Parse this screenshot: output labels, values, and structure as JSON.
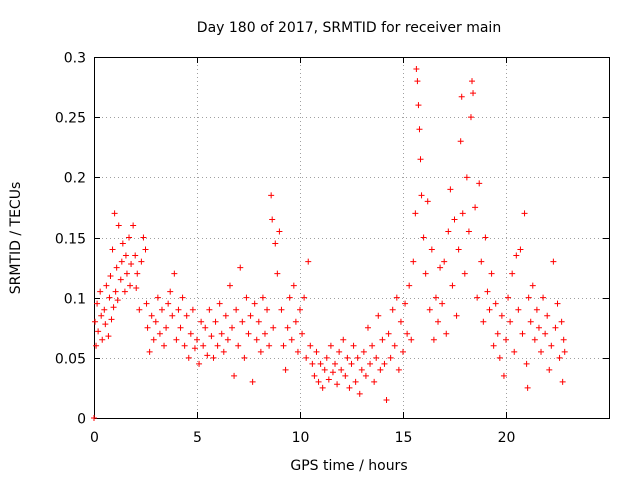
{
  "chart_data": {
    "type": "scatter",
    "title": "Day 180 of 2017, SRMTID for receiver main",
    "xlabel": "GPS time / hours",
    "ylabel": "SRMTID / TECUs",
    "xlim": [
      0,
      25
    ],
    "ylim": [
      0,
      0.3
    ],
    "grid": true,
    "marker": "+",
    "color": "#ff0000",
    "xticks": [
      {
        "value": 0,
        "label": "0"
      },
      {
        "value": 5,
        "label": "5"
      },
      {
        "value": 10,
        "label": "10"
      },
      {
        "value": 15,
        "label": "15"
      },
      {
        "value": 20,
        "label": "20"
      }
    ],
    "yticks": [
      {
        "value": 0,
        "label": "0"
      },
      {
        "value": 0.05,
        "label": "0.05"
      },
      {
        "value": 0.1,
        "label": "0.1"
      },
      {
        "value": 0.15,
        "label": "0.15"
      },
      {
        "value": 0.2,
        "label": "0.2"
      },
      {
        "value": 0.25,
        "label": "0.25"
      },
      {
        "value": 0.3,
        "label": "0.3"
      }
    ],
    "series": [
      {
        "name": "SRMTID",
        "points": [
          [
            0.0,
            0.0
          ],
          [
            0.05,
            0.08
          ],
          [
            0.1,
            0.06
          ],
          [
            0.15,
            0.095
          ],
          [
            0.2,
            0.072
          ],
          [
            0.3,
            0.105
          ],
          [
            0.35,
            0.085
          ],
          [
            0.4,
            0.065
          ],
          [
            0.5,
            0.09
          ],
          [
            0.55,
            0.078
          ],
          [
            0.6,
            0.11
          ],
          [
            0.7,
            0.068
          ],
          [
            0.75,
            0.1
          ],
          [
            0.8,
            0.118
          ],
          [
            0.85,
            0.082
          ],
          [
            0.9,
            0.14
          ],
          [
            0.95,
            0.092
          ],
          [
            1.0,
            0.17
          ],
          [
            1.05,
            0.105
          ],
          [
            1.1,
            0.125
          ],
          [
            1.15,
            0.098
          ],
          [
            1.2,
            0.16
          ],
          [
            1.3,
            0.115
          ],
          [
            1.35,
            0.13
          ],
          [
            1.4,
            0.145
          ],
          [
            1.5,
            0.105
          ],
          [
            1.55,
            0.135
          ],
          [
            1.6,
            0.12
          ],
          [
            1.7,
            0.15
          ],
          [
            1.75,
            0.11
          ],
          [
            1.8,
            0.128
          ],
          [
            1.9,
            0.16
          ],
          [
            2.0,
            0.135
          ],
          [
            2.05,
            0.108
          ],
          [
            2.1,
            0.12
          ],
          [
            2.2,
            0.09
          ],
          [
            2.3,
            0.13
          ],
          [
            2.4,
            0.15
          ],
          [
            2.5,
            0.14
          ],
          [
            2.55,
            0.095
          ],
          [
            2.6,
            0.075
          ],
          [
            2.7,
            0.055
          ],
          [
            2.8,
            0.085
          ],
          [
            2.9,
            0.065
          ],
          [
            3.0,
            0.08
          ],
          [
            3.1,
            0.1
          ],
          [
            3.2,
            0.07
          ],
          [
            3.3,
            0.09
          ],
          [
            3.4,
            0.06
          ],
          [
            3.5,
            0.075
          ],
          [
            3.6,
            0.095
          ],
          [
            3.7,
            0.105
          ],
          [
            3.8,
            0.085
          ],
          [
            3.9,
            0.12
          ],
          [
            4.0,
            0.065
          ],
          [
            4.1,
            0.09
          ],
          [
            4.2,
            0.075
          ],
          [
            4.3,
            0.1
          ],
          [
            4.4,
            0.06
          ],
          [
            4.5,
            0.085
          ],
          [
            4.6,
            0.05
          ],
          [
            4.7,
            0.07
          ],
          [
            4.8,
            0.09
          ],
          [
            4.9,
            0.058
          ],
          [
            5.0,
            0.065
          ],
          [
            5.1,
            0.045
          ],
          [
            5.2,
            0.08
          ],
          [
            5.3,
            0.06
          ],
          [
            5.4,
            0.075
          ],
          [
            5.5,
            0.052
          ],
          [
            5.6,
            0.09
          ],
          [
            5.7,
            0.068
          ],
          [
            5.8,
            0.05
          ],
          [
            5.9,
            0.08
          ],
          [
            6.0,
            0.06
          ],
          [
            6.1,
            0.095
          ],
          [
            6.2,
            0.07
          ],
          [
            6.3,
            0.055
          ],
          [
            6.4,
            0.085
          ],
          [
            6.5,
            0.065
          ],
          [
            6.6,
            0.11
          ],
          [
            6.7,
            0.075
          ],
          [
            6.8,
            0.035
          ],
          [
            6.9,
            0.09
          ],
          [
            7.0,
            0.06
          ],
          [
            7.1,
            0.125
          ],
          [
            7.2,
            0.08
          ],
          [
            7.3,
            0.05
          ],
          [
            7.4,
            0.1
          ],
          [
            7.5,
            0.07
          ],
          [
            7.6,
            0.085
          ],
          [
            7.7,
            0.03
          ],
          [
            7.8,
            0.095
          ],
          [
            7.9,
            0.065
          ],
          [
            8.0,
            0.08
          ],
          [
            8.1,
            0.055
          ],
          [
            8.2,
            0.1
          ],
          [
            8.3,
            0.07
          ],
          [
            8.4,
            0.09
          ],
          [
            8.5,
            0.06
          ],
          [
            8.6,
            0.185
          ],
          [
            8.65,
            0.165
          ],
          [
            8.7,
            0.075
          ],
          [
            8.8,
            0.145
          ],
          [
            8.9,
            0.12
          ],
          [
            9.0,
            0.155
          ],
          [
            9.1,
            0.09
          ],
          [
            9.2,
            0.06
          ],
          [
            9.3,
            0.04
          ],
          [
            9.4,
            0.075
          ],
          [
            9.5,
            0.1
          ],
          [
            9.6,
            0.065
          ],
          [
            9.7,
            0.11
          ],
          [
            9.8,
            0.08
          ],
          [
            9.9,
            0.055
          ],
          [
            10.0,
            0.09
          ],
          [
            10.1,
            0.07
          ],
          [
            10.2,
            0.1
          ],
          [
            10.3,
            0.05
          ],
          [
            10.4,
            0.13
          ],
          [
            10.5,
            0.06
          ],
          [
            10.6,
            0.045
          ],
          [
            10.7,
            0.035
          ],
          [
            10.8,
            0.055
          ],
          [
            10.9,
            0.03
          ],
          [
            11.0,
            0.045
          ],
          [
            11.1,
            0.025
          ],
          [
            11.2,
            0.04
          ],
          [
            11.3,
            0.05
          ],
          [
            11.4,
            0.032
          ],
          [
            11.5,
            0.06
          ],
          [
            11.6,
            0.038
          ],
          [
            11.7,
            0.045
          ],
          [
            11.8,
            0.028
          ],
          [
            11.9,
            0.055
          ],
          [
            12.0,
            0.04
          ],
          [
            12.1,
            0.065
          ],
          [
            12.2,
            0.035
          ],
          [
            12.3,
            0.05
          ],
          [
            12.4,
            0.025
          ],
          [
            12.5,
            0.045
          ],
          [
            12.6,
            0.06
          ],
          [
            12.7,
            0.03
          ],
          [
            12.8,
            0.05
          ],
          [
            12.9,
            0.02
          ],
          [
            13.0,
            0.04
          ],
          [
            13.1,
            0.055
          ],
          [
            13.2,
            0.035
          ],
          [
            13.3,
            0.075
          ],
          [
            13.4,
            0.045
          ],
          [
            13.5,
            0.06
          ],
          [
            13.6,
            0.03
          ],
          [
            13.7,
            0.05
          ],
          [
            13.8,
            0.085
          ],
          [
            13.9,
            0.04
          ],
          [
            14.0,
            0.065
          ],
          [
            14.1,
            0.045
          ],
          [
            14.2,
            0.015
          ],
          [
            14.3,
            0.07
          ],
          [
            14.4,
            0.05
          ],
          [
            14.5,
            0.09
          ],
          [
            14.6,
            0.06
          ],
          [
            14.7,
            0.1
          ],
          [
            14.8,
            0.04
          ],
          [
            14.9,
            0.08
          ],
          [
            15.0,
            0.055
          ],
          [
            15.1,
            0.095
          ],
          [
            15.2,
            0.07
          ],
          [
            15.3,
            0.11
          ],
          [
            15.4,
            0.065
          ],
          [
            15.5,
            0.13
          ],
          [
            15.6,
            0.17
          ],
          [
            15.65,
            0.29
          ],
          [
            15.7,
            0.28
          ],
          [
            15.75,
            0.26
          ],
          [
            15.8,
            0.24
          ],
          [
            15.85,
            0.215
          ],
          [
            15.9,
            0.185
          ],
          [
            16.0,
            0.15
          ],
          [
            16.1,
            0.12
          ],
          [
            16.2,
            0.18
          ],
          [
            16.3,
            0.09
          ],
          [
            16.4,
            0.14
          ],
          [
            16.5,
            0.065
          ],
          [
            16.6,
            0.1
          ],
          [
            16.7,
            0.08
          ],
          [
            16.8,
            0.125
          ],
          [
            16.9,
            0.095
          ],
          [
            17.0,
            0.13
          ],
          [
            17.1,
            0.07
          ],
          [
            17.2,
            0.155
          ],
          [
            17.3,
            0.19
          ],
          [
            17.4,
            0.11
          ],
          [
            17.5,
            0.165
          ],
          [
            17.6,
            0.085
          ],
          [
            17.7,
            0.14
          ],
          [
            17.8,
            0.23
          ],
          [
            17.85,
            0.267
          ],
          [
            17.9,
            0.17
          ],
          [
            18.0,
            0.12
          ],
          [
            18.1,
            0.2
          ],
          [
            18.2,
            0.155
          ],
          [
            18.3,
            0.25
          ],
          [
            18.35,
            0.28
          ],
          [
            18.4,
            0.27
          ],
          [
            18.5,
            0.175
          ],
          [
            18.6,
            0.1
          ],
          [
            18.7,
            0.195
          ],
          [
            18.8,
            0.13
          ],
          [
            18.9,
            0.08
          ],
          [
            19.0,
            0.15
          ],
          [
            19.1,
            0.105
          ],
          [
            19.2,
            0.09
          ],
          [
            19.3,
            0.12
          ],
          [
            19.4,
            0.06
          ],
          [
            19.5,
            0.095
          ],
          [
            19.6,
            0.07
          ],
          [
            19.7,
            0.05
          ],
          [
            19.8,
            0.085
          ],
          [
            19.9,
            0.035
          ],
          [
            20.0,
            0.065
          ],
          [
            20.1,
            0.1
          ],
          [
            20.2,
            0.08
          ],
          [
            20.3,
            0.12
          ],
          [
            20.4,
            0.055
          ],
          [
            20.5,
            0.135
          ],
          [
            20.6,
            0.09
          ],
          [
            20.7,
            0.14
          ],
          [
            20.8,
            0.07
          ],
          [
            20.9,
            0.17
          ],
          [
            21.0,
            0.045
          ],
          [
            21.05,
            0.025
          ],
          [
            21.1,
            0.1
          ],
          [
            21.2,
            0.08
          ],
          [
            21.3,
            0.11
          ],
          [
            21.4,
            0.065
          ],
          [
            21.5,
            0.09
          ],
          [
            21.6,
            0.075
          ],
          [
            21.7,
            0.055
          ],
          [
            21.8,
            0.1
          ],
          [
            21.9,
            0.07
          ],
          [
            22.0,
            0.085
          ],
          [
            22.1,
            0.04
          ],
          [
            22.2,
            0.06
          ],
          [
            22.3,
            0.13
          ],
          [
            22.4,
            0.075
          ],
          [
            22.5,
            0.095
          ],
          [
            22.6,
            0.05
          ],
          [
            22.7,
            0.08
          ],
          [
            22.75,
            0.03
          ],
          [
            22.8,
            0.065
          ],
          [
            22.85,
            0.055
          ]
        ]
      }
    ]
  }
}
